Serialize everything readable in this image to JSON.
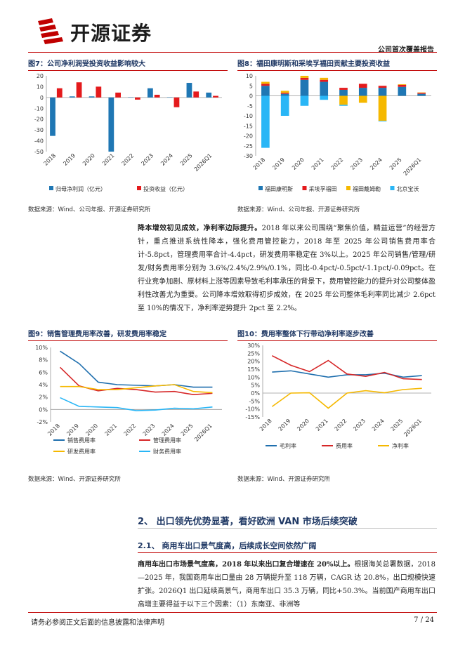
{
  "header": {
    "brand": "开源证券",
    "report_type": "公司首次覆盖报告"
  },
  "fig7": {
    "title": "图7：公司净利润受投资收益影响较大",
    "source": "数据来源：Wind、公司年报、开源证券研究所"
  },
  "fig8": {
    "title": "图8：福田康明斯和采埃孚福田贡献主要投资收益",
    "source": "数据来源：Wind、公司年报、开源证券研究所"
  },
  "fig9": {
    "title": "图9：销售管理费用率改善，研发费用率稳定",
    "source": "数据来源：Wind、开源证券研究所"
  },
  "fig10": {
    "title": "图10：费用率整体下行带动净利率逐步改善",
    "source": "数据来源：Wind、开源证券研究所"
  },
  "para1": {
    "lead": "降本增效初见成效，净利率边际提升。",
    "body": "2018 年以来公司围绕“聚焦价值，精益运营”的经营方针，重点推进系统性降本，强化费用管控能力，2018 年至 2025 年公司销售费用率合计-5.8pct，管理费用率合计-4.4pct，研发费用率稳定在 3%以上。2025 年公司销售/管理/研发/财务费用率分别为 3.6%/2.4%/2.9%/0.1%，同比-0.4pct/-0.5pct/-1.1pct/-0.09pct。在行业竞争加剧、原材料上涨等因素导致毛利率承压的背景下，费用管控能力的提升对公司整体盈利性改善尤为重要。公司降本增效取得初步成效，在 2025 年公司整体毛利率同比减少 2.6pct 至 10%的情况下，净利率逆势提升 2pct 至 2.2%。"
  },
  "section2": {
    "heading": "2、 出口领先优势显著，看好欧洲 VAN 市场后续突破",
    "sub_heading": "2.1、 商用车出口景气度高，后续成长空间依然广阔"
  },
  "para2": {
    "lead": "商用车出口市场景气度高，2018 年以来出口复合增速在 20%以上。",
    "body": "根据海关总署数据，2018—2025 年，我国商用车出口量由 28 万辆提升至 118 万辆，CAGR 达 20.8%，出口规模快速扩张。2026Q1 出口延续高景气，商用车出口 35.3 万辆，同比+50.3%。当前国产商用车出口高增主要得益于以下三个因素：（1）东南亚、非洲等"
  },
  "footer": {
    "disclaimer": "请务必参阅正文后面的信息披露和法律声明",
    "page": "7 / 24"
  },
  "chart_data": [
    {
      "type": "bar",
      "categories": [
        "2018",
        "2019",
        "2020",
        "2021",
        "2022",
        "2023",
        "2024",
        "2025",
        "2026Q1"
      ],
      "series": [
        {
          "name": "归母净利润（亿元）",
          "color": "#1f77b4",
          "values": [
            -35.5,
            1.0,
            1.0,
            -50.0,
            0.3,
            8.5,
            0.3,
            13.5,
            4.5
          ]
        },
        {
          "name": "投资收益（亿元）",
          "color": "#e41a1c",
          "values": [
            8.5,
            14.0,
            10.0,
            4.5,
            -2.0,
            2.5,
            -9.0,
            5.5,
            1.5
          ]
        }
      ],
      "yticks": [
        20,
        10,
        0,
        -10,
        -20,
        -30,
        -40,
        -50
      ],
      "ylim": [
        -50,
        20
      ]
    },
    {
      "type": "bar",
      "stacked": true,
      "categories": [
        "2018",
        "2019",
        "2020",
        "2021",
        "2022",
        "2023",
        "2024",
        "2025",
        "2026Q1"
      ],
      "series": [
        {
          "name": "福田康明斯",
          "color": "#1f77b4",
          "values": [
            5,
            1,
            8,
            7,
            3,
            4,
            4,
            4.5,
            1
          ]
        },
        {
          "name": "采埃孚福田",
          "color": "#e41a1c",
          "values": [
            1,
            0.5,
            1,
            1,
            1,
            2,
            1,
            1,
            0.5
          ]
        },
        {
          "name": "福田戴姆勒",
          "color": "#f5b800",
          "values": [
            1,
            1,
            1,
            1,
            -4.5,
            -3.5,
            -12.5,
            0.3,
            0.2
          ]
        },
        {
          "name": "北京宝沃",
          "color": "#29b6f6",
          "values": [
            -26,
            -10,
            -5,
            -2,
            -0.5,
            0,
            -0.3,
            0,
            0
          ]
        }
      ],
      "yticks": [
        10,
        5,
        0,
        -5,
        -10,
        -15,
        -20,
        -25,
        -30
      ],
      "ylim": [
        -30,
        10
      ]
    },
    {
      "type": "line",
      "categories": [
        "2018",
        "2019",
        "2020",
        "2021",
        "2022",
        "2023",
        "2024",
        "2025",
        "2026Q1"
      ],
      "series": [
        {
          "name": "销售费用率",
          "color": "#1f6fae",
          "values": [
            9.4,
            7.4,
            4.4,
            4.0,
            3.9,
            3.8,
            4.0,
            3.6,
            3.6
          ]
        },
        {
          "name": "管理费用率",
          "color": "#d62728",
          "values": [
            6.8,
            3.8,
            3.0,
            3.4,
            3.2,
            2.8,
            2.9,
            2.4,
            2.6
          ]
        },
        {
          "name": "研发费用率",
          "color": "#f5b800",
          "values": [
            3.7,
            3.7,
            3.2,
            3.2,
            3.5,
            3.8,
            4.0,
            2.9,
            2.7
          ]
        },
        {
          "name": "财务费用率",
          "color": "#29b6f6",
          "values": [
            1.9,
            0.5,
            0.4,
            0.3,
            -0.2,
            -0.1,
            0.2,
            0.1,
            0.4
          ]
        }
      ],
      "yticks": [
        "10%",
        "8%",
        "6%",
        "4%",
        "2%",
        "0%",
        "-2%"
      ],
      "ylim": [
        -2,
        10
      ]
    },
    {
      "type": "line",
      "categories": [
        "2018",
        "2019",
        "2020",
        "2021",
        "2022",
        "2023",
        "2024",
        "2025",
        "2026Q1"
      ],
      "series": [
        {
          "name": "毛利率",
          "color": "#1f6fae",
          "values": [
            13.2,
            14.0,
            12.0,
            10.0,
            11.5,
            11.5,
            12.5,
            10.0,
            11.0
          ]
        },
        {
          "name": "费用率",
          "color": "#d62728",
          "values": [
            23.5,
            17.5,
            13.5,
            20.5,
            12.0,
            10.5,
            13.0,
            9.0,
            8.5
          ]
        },
        {
          "name": "净利率",
          "color": "#f5b800",
          "values": [
            -8.5,
            0.0,
            0.2,
            -9.5,
            0.0,
            1.5,
            0.2,
            2.2,
            3.0
          ]
        }
      ],
      "yticks": [
        "30%",
        "25%",
        "20%",
        "15%",
        "10%",
        "5%",
        "0%",
        "-5%",
        "-10%",
        "-15%"
      ],
      "ylim": [
        -15,
        30
      ]
    }
  ]
}
